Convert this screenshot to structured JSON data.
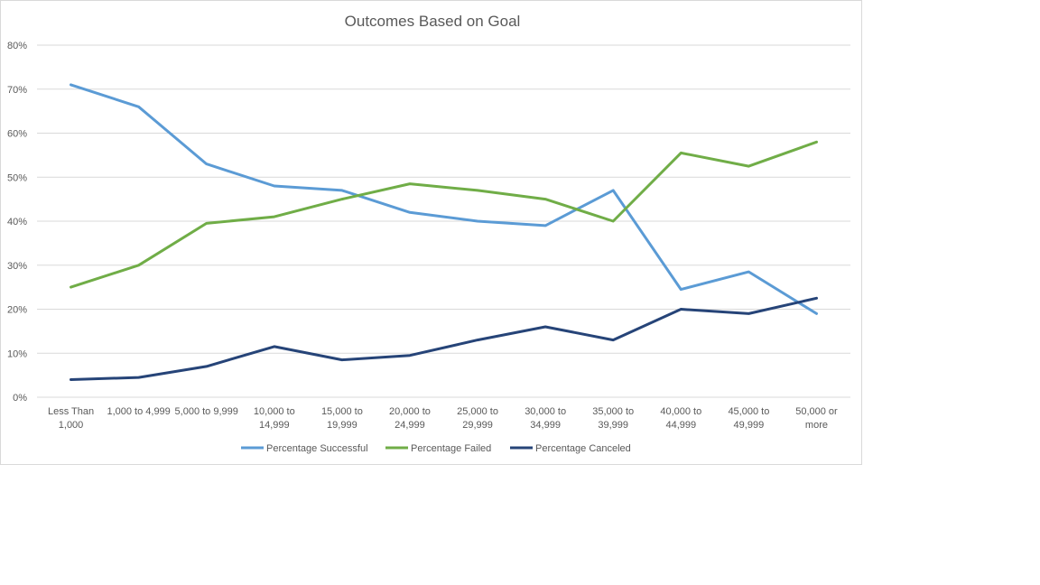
{
  "chart_data": {
    "type": "line",
    "title": "Outcomes Based on Goal",
    "xlabel": "",
    "ylabel": "",
    "ylim": [
      0,
      80
    ],
    "y_ticks": [
      0,
      10,
      20,
      30,
      40,
      50,
      60,
      70,
      80
    ],
    "y_tick_format": "percent",
    "grid": true,
    "legend_position": "bottom",
    "categories": [
      [
        "Less Than",
        "1,000"
      ],
      [
        "1,000 to 4,999"
      ],
      [
        "5,000 to 9,999"
      ],
      [
        "10,000 to",
        "14,999"
      ],
      [
        "15,000 to",
        "19,999"
      ],
      [
        "20,000 to",
        "24,999"
      ],
      [
        "25,000 to",
        "29,999"
      ],
      [
        "30,000 to",
        "34,999"
      ],
      [
        "35,000 to",
        "39,999"
      ],
      [
        "40,000 to",
        "44,999"
      ],
      [
        "45,000 to",
        "49,999"
      ],
      [
        "50,000 or",
        "more"
      ]
    ],
    "series": [
      {
        "name": "Percentage Successful",
        "color": "#5b9bd5",
        "values": [
          71,
          66,
          53,
          48,
          47,
          42,
          40,
          39,
          47,
          24.5,
          28.5,
          19
        ]
      },
      {
        "name": "Percentage Failed",
        "color": "#70ad47",
        "values": [
          25,
          30,
          39.5,
          41,
          45,
          48.5,
          47,
          45,
          40,
          55.5,
          52.5,
          58
        ]
      },
      {
        "name": "Percentage Canceled",
        "color": "#264478",
        "values": [
          4,
          4.5,
          7,
          11.5,
          8.5,
          9.5,
          13,
          16,
          13,
          20,
          19,
          22.5
        ]
      }
    ]
  }
}
